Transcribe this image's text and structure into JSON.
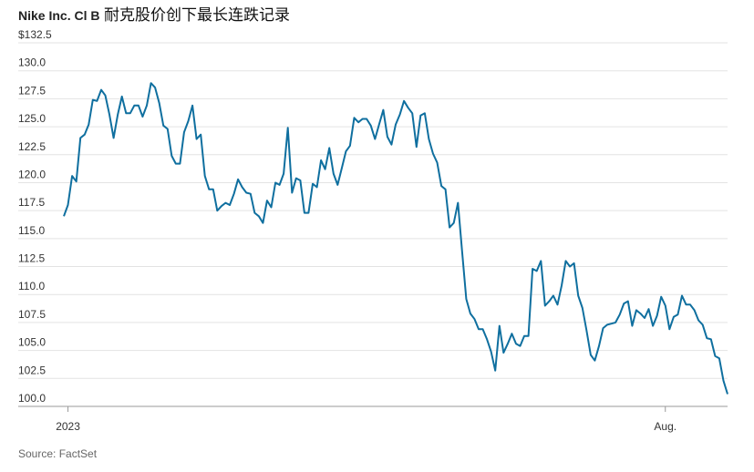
{
  "chart_data": {
    "type": "line",
    "title": "Nike Inc. Cl B",
    "subtitle": "耐克股价创下最长连跌记录",
    "source": "Source: FactSet",
    "categories": [
      null,
      "2023",
      null,
      null,
      null,
      null,
      null,
      null,
      null,
      null,
      null,
      null,
      null,
      null,
      null,
      null,
      null,
      null,
      null,
      null,
      null,
      null,
      null,
      null,
      null,
      null,
      null,
      null,
      null,
      null,
      null,
      null,
      null,
      null,
      null,
      null,
      null,
      null,
      null,
      null,
      null,
      null,
      null,
      null,
      null,
      null,
      null,
      null,
      null,
      null,
      null,
      null,
      null,
      null,
      null,
      null,
      null,
      null,
      null,
      null,
      null,
      null,
      null,
      null,
      null,
      null,
      null,
      null,
      null,
      null,
      null,
      null,
      null,
      null,
      null,
      null,
      null,
      null,
      null,
      null,
      null,
      null,
      null,
      null,
      null,
      null,
      null,
      null,
      null,
      null,
      null,
      null,
      null,
      null,
      null,
      null,
      null,
      null,
      null,
      null,
      null,
      null,
      null,
      null,
      null,
      null,
      null,
      null,
      null,
      null,
      null,
      null,
      null,
      null,
      null,
      null,
      null,
      null,
      null,
      null,
      null,
      null,
      null,
      null,
      null,
      null,
      null,
      null,
      null,
      null,
      null,
      null,
      null,
      null,
      null,
      null,
      null,
      null,
      null,
      null,
      null,
      null,
      null,
      null,
      null,
      "Aug.",
      null,
      null,
      null,
      null,
      null,
      null,
      null,
      null,
      null,
      null,
      null,
      null,
      null,
      null,
      null
    ],
    "series": [
      {
        "name": "Nike Inc. Cl B",
        "color": "#0f6f9f",
        "values": [
          117.0,
          118.0,
          120.6,
          120.1,
          124.0,
          124.3,
          125.2,
          127.4,
          127.3,
          128.3,
          127.8,
          126.1,
          124.0,
          126.1,
          127.7,
          126.2,
          126.2,
          126.9,
          126.9,
          125.9,
          126.9,
          128.9,
          128.5,
          127.1,
          125.1,
          124.8,
          122.4,
          121.7,
          121.7,
          124.5,
          125.5,
          126.9,
          123.9,
          124.3,
          120.6,
          119.4,
          119.4,
          117.5,
          117.9,
          118.2,
          118.0,
          119.0,
          120.3,
          119.6,
          119.1,
          119.0,
          117.3,
          117.0,
          116.4,
          118.4,
          117.8,
          120.0,
          119.8,
          120.8,
          124.9,
          119.1,
          120.4,
          120.2,
          117.3,
          117.3,
          119.9,
          119.6,
          122.0,
          121.2,
          123.1,
          120.8,
          119.8,
          121.3,
          122.8,
          123.3,
          125.8,
          125.4,
          125.7,
          125.7,
          125.1,
          123.9,
          125.2,
          126.5,
          124.1,
          123.4,
          125.2,
          126.1,
          127.3,
          126.7,
          126.2,
          123.2,
          126.0,
          126.2,
          123.9,
          122.6,
          121.8,
          119.7,
          119.4,
          116.0,
          116.4,
          118.2,
          113.9,
          109.6,
          108.3,
          107.8,
          106.9,
          106.9,
          106.0,
          104.9,
          103.2,
          107.2,
          104.8,
          105.6,
          106.5,
          105.6,
          105.4,
          106.3,
          106.3,
          112.3,
          112.1,
          113.0,
          109.0,
          109.4,
          109.9,
          109.1,
          110.8,
          113.0,
          112.5,
          112.8,
          109.9,
          108.8,
          106.8,
          104.6,
          104.1,
          105.4,
          107.0,
          107.3,
          107.4,
          107.5,
          108.2,
          109.2,
          109.4,
          107.2,
          108.6,
          108.3,
          107.9,
          108.7,
          107.2,
          108.1,
          109.8,
          109.0,
          106.9,
          108.0,
          108.2,
          109.9,
          109.1,
          109.1,
          108.6,
          107.7,
          107.3,
          106.1,
          106.0,
          104.5,
          104.3,
          102.3,
          101.1
        ]
      }
    ],
    "ylim": [
      100,
      132.5
    ],
    "yticks": [
      {
        "value": 100,
        "label": "100.0"
      },
      {
        "value": 102.5,
        "label": "102.5"
      },
      {
        "value": 105,
        "label": "105.0"
      },
      {
        "value": 107.5,
        "label": "107.5"
      },
      {
        "value": 110,
        "label": "110.0"
      },
      {
        "value": 112.5,
        "label": "112.5"
      },
      {
        "value": 115,
        "label": "115.0"
      },
      {
        "value": 117.5,
        "label": "117.5"
      },
      {
        "value": 120,
        "label": "120.0"
      },
      {
        "value": 122.5,
        "label": "122.5"
      },
      {
        "value": 125,
        "label": "125.0"
      },
      {
        "value": 127.5,
        "label": "127.5"
      },
      {
        "value": 130,
        "label": "130.0"
      },
      {
        "value": 132.5,
        "label": "$132.5"
      }
    ],
    "grid": true
  }
}
